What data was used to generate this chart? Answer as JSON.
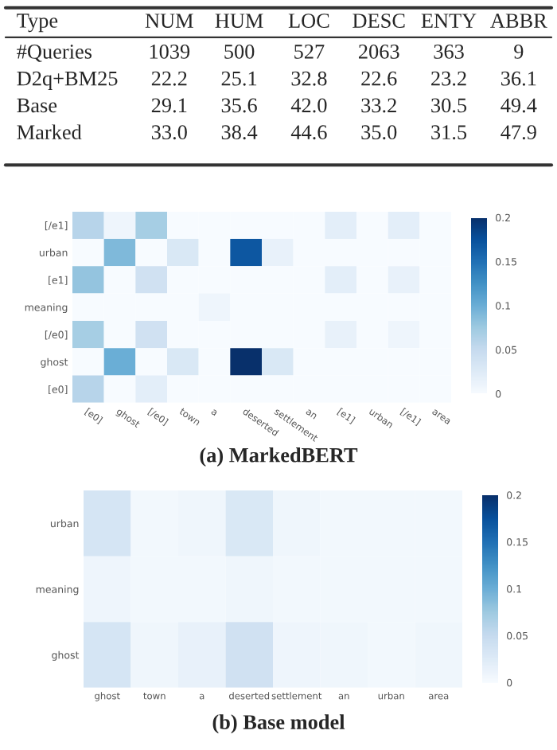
{
  "chart_data": [
    {
      "type": "other",
      "ylabel": "Type",
      "categories": [
        "NUM",
        "HUM",
        "LOC",
        "DESC",
        "ENTY",
        "ABBR"
      ],
      "y_categories": [
        "#Queries",
        "D2q+BM25",
        "Base",
        "Marked"
      ],
      "cell_labels": [
        [
          "1039",
          "500",
          "527",
          "2063",
          "363",
          "9"
        ],
        [
          "22.2",
          "25.1",
          "32.8",
          "22.6",
          "23.2",
          "36.1"
        ],
        [
          "29.1",
          "35.6",
          "42.0",
          "33.2",
          "30.5",
          "49.4"
        ],
        [
          "33.0",
          "38.4",
          "44.6",
          "35.0",
          "31.5",
          "47.9"
        ]
      ]
    },
    {
      "type": "heatmap",
      "title": "(a) MarkedBERT",
      "categories": [
        "[e0]",
        "ghost",
        "[/e0]",
        "town",
        "a",
        "deserted",
        "settlement",
        "an",
        "[e1]",
        "urban",
        "[/e1]",
        "area"
      ],
      "y_categories": [
        "[/e1]",
        "urban",
        "[e1]",
        "meaning",
        "[/e0]",
        "ghost",
        "[e0]"
      ],
      "cells": [
        [
          0.06,
          0.01,
          0.07,
          0,
          0,
          0,
          0,
          0,
          0.02,
          0,
          0.02,
          0
        ],
        [
          0,
          0.09,
          0,
          0.03,
          0,
          0.17,
          0.015,
          0,
          0,
          0,
          0,
          0
        ],
        [
          0.08,
          0,
          0.04,
          0,
          0,
          0,
          0,
          0,
          0.02,
          0,
          0.015,
          0
        ],
        [
          0,
          0,
          0,
          0,
          0.01,
          0,
          0,
          0,
          0,
          0,
          0,
          0
        ],
        [
          0.07,
          0,
          0.04,
          0,
          0,
          0,
          0,
          0,
          0.015,
          0,
          0.01,
          0
        ],
        [
          0,
          0.1,
          0,
          0.03,
          0,
          0.2,
          0.03,
          0,
          0,
          0,
          0,
          0
        ],
        [
          0.06,
          0,
          0.02,
          0,
          0,
          0,
          0,
          0,
          0,
          0,
          0,
          0
        ]
      ],
      "clim": [
        0,
        0.2
      ],
      "cticks": [
        0,
        0.05,
        0.1,
        0.15,
        0.2
      ]
    },
    {
      "type": "heatmap",
      "title": "(b) Base model",
      "categories": [
        "ghost",
        "town",
        "a",
        "deserted",
        "settlement",
        "an",
        "urban",
        "area"
      ],
      "y_categories": [
        "urban",
        "meaning",
        "ghost"
      ],
      "cells": [
        [
          0.035,
          0.005,
          0.008,
          0.03,
          0.008,
          0.005,
          0.005,
          0.005
        ],
        [
          0.01,
          0.005,
          0.005,
          0.008,
          0.005,
          0.005,
          0.005,
          0.005
        ],
        [
          0.035,
          0.008,
          0.015,
          0.04,
          0.01,
          0.008,
          0.005,
          0.008
        ]
      ],
      "clim": [
        0,
        0.2
      ],
      "cticks": [
        0,
        0.05,
        0.1,
        0.15,
        0.2
      ]
    }
  ]
}
